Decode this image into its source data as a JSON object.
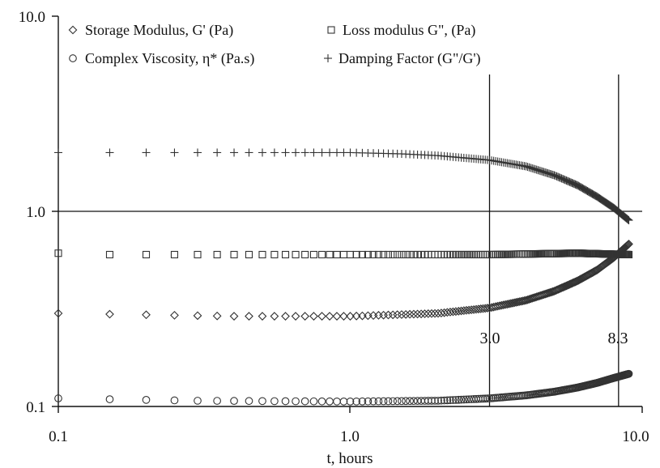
{
  "chart_data": {
    "type": "scatter",
    "title": "",
    "xlabel": "t, hours",
    "ylabel": "",
    "xscale": "log",
    "yscale": "log",
    "xlim": [
      0.1,
      10.0
    ],
    "ylim": [
      0.1,
      10.0
    ],
    "x_tick_labels": [
      "0.1",
      "1.0",
      "10.0"
    ],
    "y_tick_labels": [
      "0.1",
      "1.0",
      "10.0"
    ],
    "grid": false,
    "legend_position": "top",
    "reference_line_y": 1.0,
    "annotations": [
      {
        "label": "3.0",
        "x": 3.0
      },
      {
        "label": "8.3",
        "x": 8.3
      }
    ],
    "series": [
      {
        "name": "Storage Modulus, G' (Pa)",
        "marker": "diamond",
        "anchors_x": [
          0.1,
          0.4,
          1.0,
          2.0,
          3.0,
          4.0,
          5.0,
          6.0,
          7.0,
          8.0,
          9.0
        ],
        "anchors_y": [
          0.3,
          0.29,
          0.29,
          0.3,
          0.32,
          0.35,
          0.39,
          0.44,
          0.5,
          0.58,
          0.68
        ]
      },
      {
        "name": "Loss modulus G\", (Pa)",
        "marker": "square",
        "anchors_x": [
          0.1,
          0.15,
          0.5,
          1.0,
          3.0,
          6.0,
          9.0
        ],
        "anchors_y": [
          0.61,
          0.6,
          0.6,
          0.6,
          0.6,
          0.61,
          0.6
        ]
      },
      {
        "name": "Complex Viscosity, η* (Pa.s)",
        "marker": "circle",
        "anchors_x": [
          0.1,
          0.3,
          1.0,
          2.0,
          3.0,
          4.0,
          5.0,
          6.0,
          7.0,
          8.0,
          9.0
        ],
        "anchors_y": [
          0.11,
          0.107,
          0.106,
          0.107,
          0.11,
          0.114,
          0.119,
          0.125,
          0.132,
          0.14,
          0.147
        ]
      },
      {
        "name": "Damping Factor (G\"/G')",
        "marker": "plus",
        "anchors_x": [
          0.1,
          0.5,
          1.0,
          1.5,
          2.0,
          3.0,
          4.0,
          5.0,
          6.0,
          7.0,
          8.0,
          9.0
        ],
        "anchors_y": [
          2.0,
          2.0,
          2.0,
          1.97,
          1.93,
          1.83,
          1.7,
          1.53,
          1.36,
          1.19,
          1.04,
          0.9
        ]
      }
    ]
  }
}
